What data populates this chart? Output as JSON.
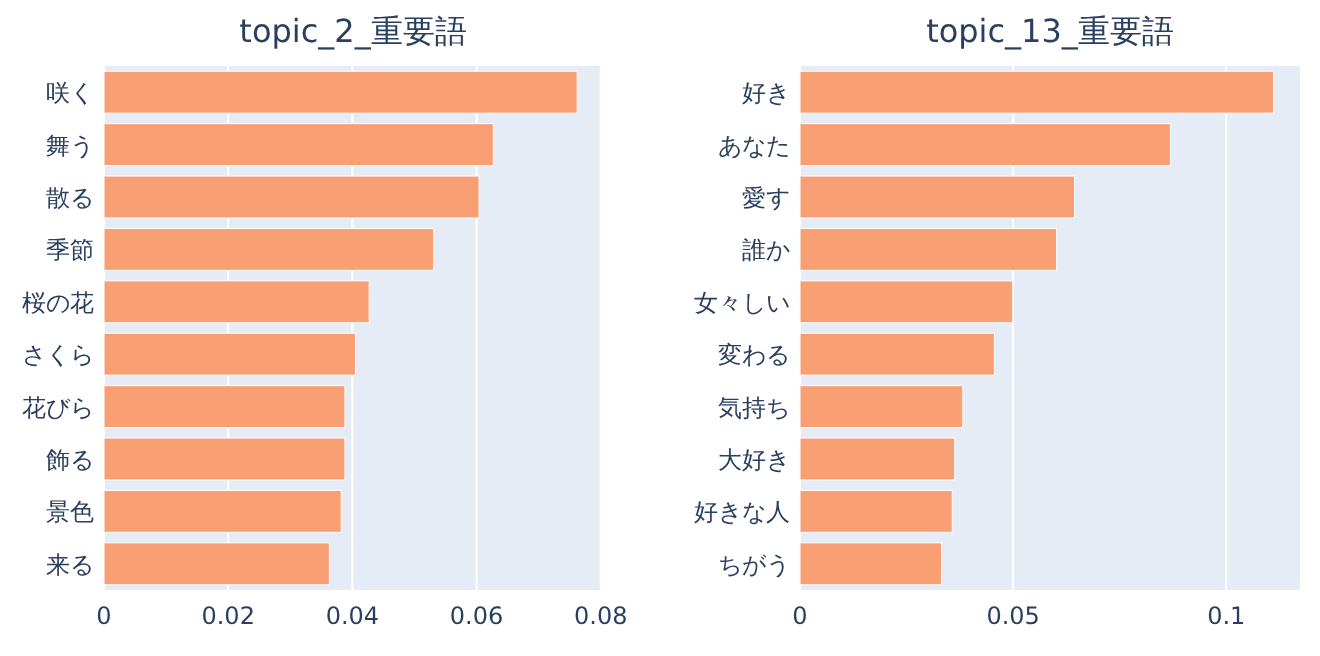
{
  "chart_data": [
    {
      "type": "bar",
      "orientation": "horizontal",
      "title": "topic_2_重要語",
      "categories": [
        "咲く",
        "舞う",
        "散る",
        "季節",
        "桜の花",
        "さくら",
        "花びら",
        "飾る",
        "景色",
        "来る"
      ],
      "values": [
        0.0762,
        0.0627,
        0.0604,
        0.0531,
        0.0427,
        0.0405,
        0.0388,
        0.0388,
        0.0382,
        0.0363
      ],
      "color": "#f99f74",
      "xlim": [
        0,
        0.0802
      ],
      "xticks": [
        0,
        0.02,
        0.04,
        0.06,
        0.08
      ],
      "grid": "x"
    },
    {
      "type": "bar",
      "orientation": "horizontal",
      "title": "topic_13_重要語",
      "categories": [
        "好き",
        "あなた",
        "愛す",
        "誰か",
        "女々しい",
        "変わる",
        "気持ち",
        "大好き",
        "好きな人",
        "ちがう"
      ],
      "values": [
        0.1111,
        0.0869,
        0.0644,
        0.0602,
        0.0499,
        0.0456,
        0.0382,
        0.0363,
        0.0357,
        0.0332
      ],
      "color": "#f99f74",
      "xlim": [
        0,
        0.1173
      ],
      "xticks": [
        0,
        0.05,
        0.1
      ],
      "grid": "x"
    }
  ]
}
